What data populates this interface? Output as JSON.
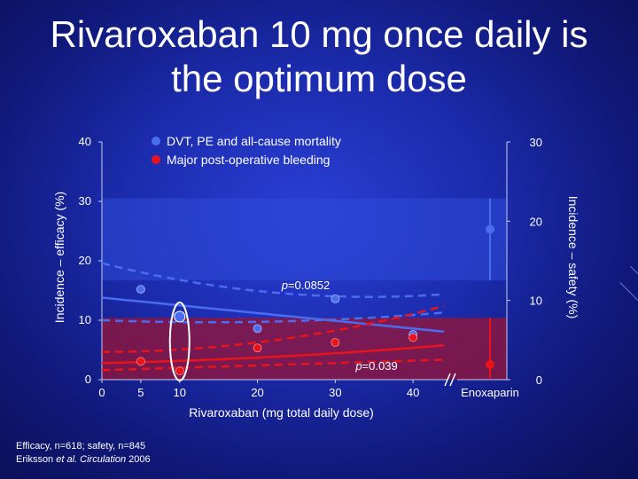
{
  "slide": {
    "title_line1": "Rivaroxaban 10 mg once daily is",
    "title_line2": "the optimum dose",
    "footnote_line1": "Efficacy, n=618; safety, n=845",
    "footnote_line2_prefix": "Eriksson ",
    "footnote_line2_italic": "et al. Circulation",
    "footnote_line2_suffix": " 2006"
  },
  "colors": {
    "efficacy": "#4a6cf0",
    "safety": "#e8141c",
    "efficacy_band": "#2d4ad8",
    "safety_band": "#9a1436"
  },
  "chart_data": {
    "type": "scatter",
    "title": "Rivaroxaban 10 mg once daily is the optimum dose",
    "xlabel": "Rivaroxaban (mg total daily dose)",
    "ylabel_left": "Incidence – efficacy (%)",
    "ylabel_right": "Incidence – safety (%)",
    "x_ticks": [
      "0",
      "5",
      "10",
      "20",
      "30",
      "40"
    ],
    "x_tick_values": [
      0,
      5,
      10,
      20,
      30,
      40
    ],
    "x_extra_label": "Enoxaparin",
    "ylim_left": [
      0,
      40
    ],
    "y_ticks_left": [
      "0",
      "10",
      "20",
      "30",
      "40"
    ],
    "ylim_right": [
      0,
      30
    ],
    "y_ticks_right": [
      "0",
      "10",
      "20",
      "30"
    ],
    "legend": [
      {
        "label": "DVT, PE and all-cause mortality",
        "series": "efficacy"
      },
      {
        "label": "Major post-operative bleeding",
        "series": "safety"
      }
    ],
    "series": [
      {
        "name": "DVT, PE and all-cause mortality",
        "axis": "left",
        "x": [
          5,
          10,
          20,
          30,
          40
        ],
        "values": [
          15.2,
          10.6,
          8.6,
          13.6,
          7.6
        ],
        "highlight_x": 10,
        "comparator_value": 25.3
      },
      {
        "name": "Major post-operative bleeding",
        "axis": "right",
        "x": [
          5,
          10,
          20,
          30,
          40
        ],
        "values": [
          2.3,
          1.1,
          4.0,
          4.7,
          5.3
        ],
        "comparator_value": 1.9
      }
    ],
    "annotations": [
      {
        "text": "p=0.0852",
        "series": "efficacy"
      },
      {
        "text": "p=0.039",
        "series": "safety"
      }
    ]
  }
}
